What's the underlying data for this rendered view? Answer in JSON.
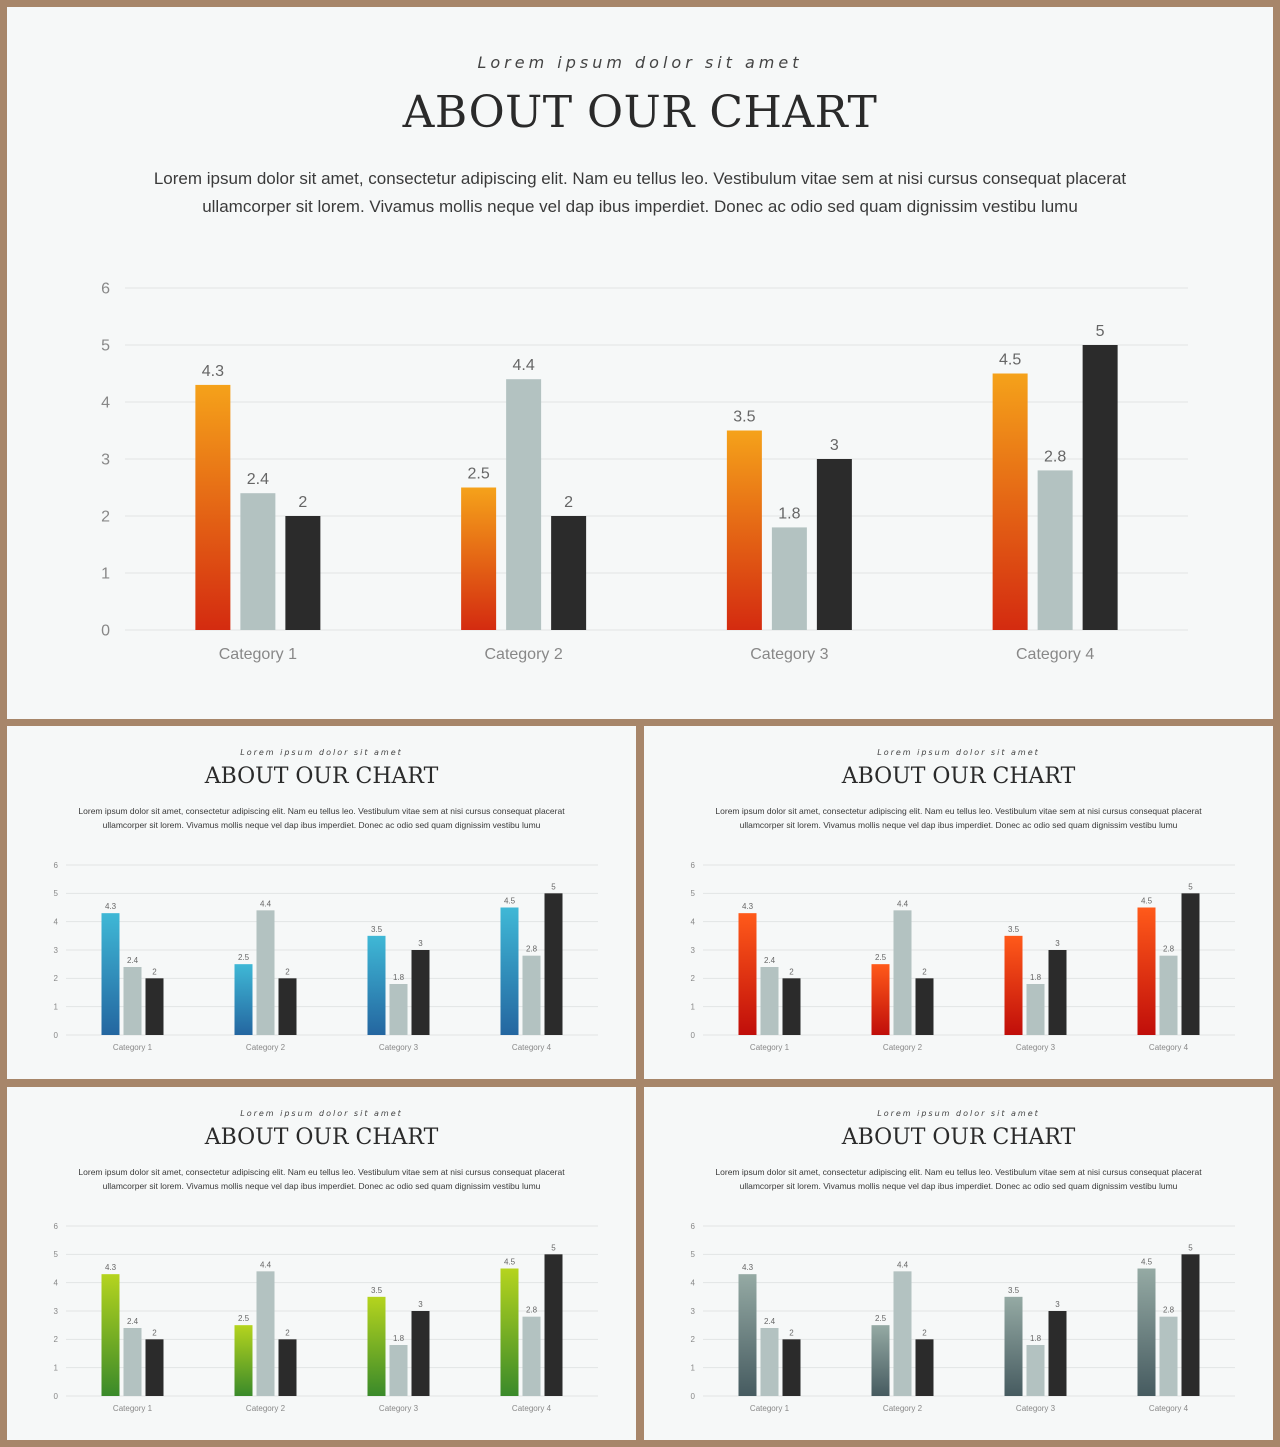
{
  "slides": {
    "kicker": "Lorem ipsum dolor sit amet",
    "title": "ABOUT OUR CHART",
    "body_line1": "Lorem ipsum dolor sit amet, consectetur adipiscing elit. Nam eu tellus leo. Vestibulum vitae sem at nisi cursus consequat placerat",
    "body_line2": "ullamcorper sit lorem. Vivamus mollis neque vel dap ibus imperdiet. Donec ac odio sed quam dignissim vestibu lumu"
  },
  "themes": {
    "main": {
      "top": "#f5a21a",
      "bottom": "#d42b10"
    },
    "a": {
      "top": "#3fb8d6",
      "bottom": "#2466a0"
    },
    "b": {
      "top": "#ff5a1a",
      "bottom": "#c00e0a"
    },
    "c": {
      "top": "#b5d41e",
      "bottom": "#3a8a2a"
    },
    "d": {
      "top": "#95aaa4",
      "bottom": "#465b60"
    }
  },
  "series_colors": {
    "series2": "#b3c2c1",
    "series3": "#2b2b2b"
  },
  "chart_data": {
    "type": "bar",
    "categories": [
      "Category 1",
      "Category 2",
      "Category 3",
      "Category 4"
    ],
    "series": [
      {
        "values": [
          4.3,
          2.5,
          3.5,
          4.5
        ]
      },
      {
        "values": [
          2.4,
          4.4,
          1.8,
          2.8
        ]
      },
      {
        "values": [
          2,
          2,
          3,
          5
        ]
      }
    ],
    "ylim": [
      0,
      6
    ],
    "yticks": [
      "0",
      "1",
      "2",
      "3",
      "4",
      "5",
      "6"
    ],
    "data_labels": true,
    "grid": true,
    "legend": "none"
  }
}
